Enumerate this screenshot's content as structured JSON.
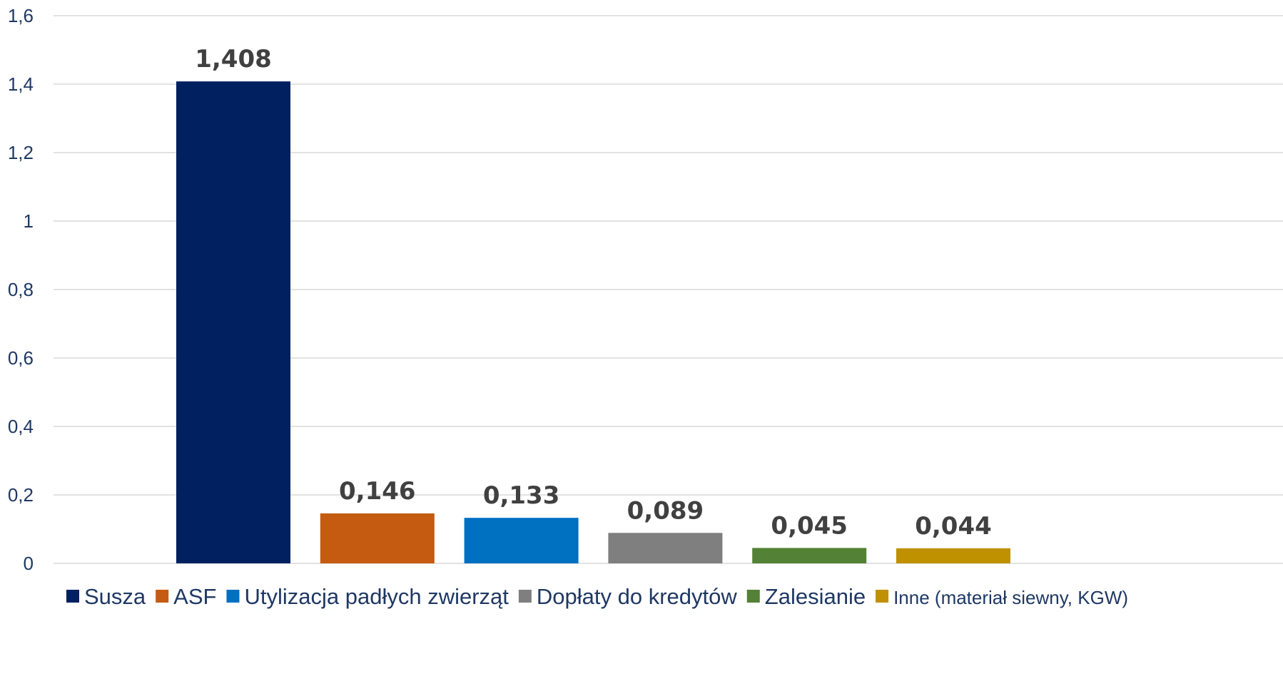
{
  "chart_data": {
    "type": "bar",
    "title": "",
    "xlabel": "",
    "ylabel": "",
    "ylim": [
      0,
      1.6
    ],
    "yticks": [
      "0",
      "0,2",
      "0,4",
      "0,6",
      "0,8",
      "1",
      "1,2",
      "1,4",
      "1,6"
    ],
    "grid": true,
    "legend_position": "bottom",
    "series": [
      {
        "name": "Susza",
        "value": 1.408,
        "label": "1,408",
        "color": "#002060"
      },
      {
        "name": "ASF",
        "value": 0.146,
        "label": "0,146",
        "color": "#C55A11"
      },
      {
        "name": "Utylizacja padłych zwierząt",
        "value": 0.133,
        "label": "0,133",
        "color": "#0070C0"
      },
      {
        "name": "Dopłaty do kredytów",
        "value": 0.089,
        "label": "0,089",
        "color": "#7F7F7F"
      },
      {
        "name": "Zalesianie",
        "value": 0.045,
        "label": "0,045",
        "color": "#538135"
      },
      {
        "name": "Inne (materiał siewny, KGW)",
        "value": 0.044,
        "label": "0,044",
        "color": "#BF9000"
      }
    ]
  }
}
